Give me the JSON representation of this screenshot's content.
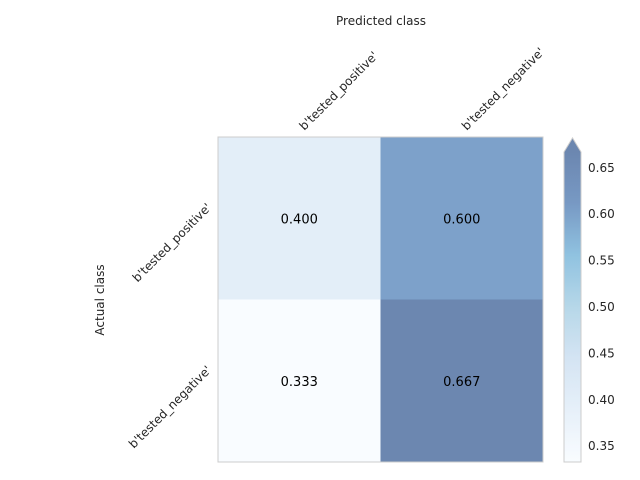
{
  "chart_data": {
    "type": "heatmap",
    "title": "",
    "xlabel": "Predicted class",
    "ylabel": "Actual class",
    "x_categories": [
      "b'tested_positive'",
      "b'tested_negative'"
    ],
    "y_categories": [
      "b'tested_positive'",
      "b'tested_negative'"
    ],
    "values": [
      [
        0.4,
        0.6
      ],
      [
        0.333,
        0.667
      ]
    ],
    "cell_labels": [
      [
        "0.400",
        "0.600"
      ],
      [
        "0.333",
        "0.667"
      ]
    ],
    "colorbar": {
      "range": [
        0.333,
        0.667
      ],
      "ticks": [
        0.35,
        0.4,
        0.45,
        0.5,
        0.55,
        0.6,
        0.65
      ],
      "tick_labels": [
        "0.35",
        "0.40",
        "0.45",
        "0.50",
        "0.55",
        "0.60",
        "0.65"
      ],
      "extend": "max"
    },
    "colormap": [
      "#f7fbff",
      "#deebf7",
      "#c6dbef",
      "#9ecae1",
      "#6baed6",
      "#4a77b0",
      "#3b5f96"
    ],
    "cell_opacity": 0.75,
    "grid": false
  }
}
